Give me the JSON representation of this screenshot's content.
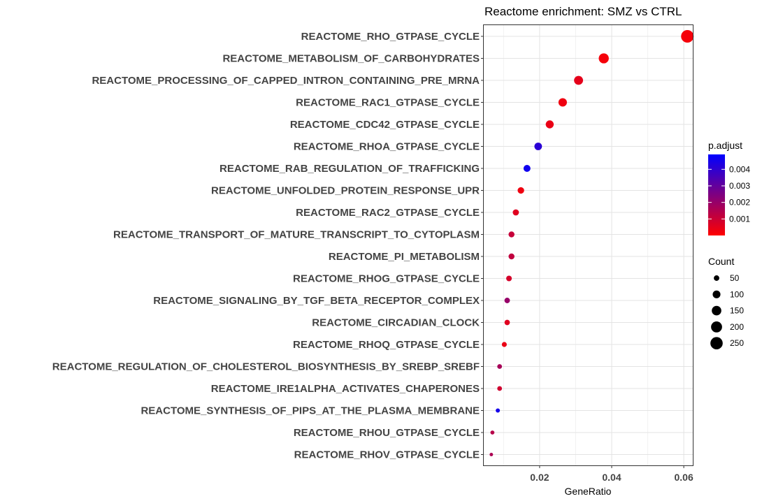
{
  "chart_data": {
    "type": "scatter",
    "title": "Reactome enrichment: SMZ vs CTRL",
    "xlabel": "GeneRatio",
    "ylabel": "",
    "xlim": [
      0.0045,
      0.0625
    ],
    "xticks": [
      0.02,
      0.04,
      0.06
    ],
    "xtick_labels": [
      "0.02",
      "0.04",
      "0.06"
    ],
    "grid": true,
    "colors": {
      "low": "#FF0000",
      "high": "#0000FF"
    },
    "color_legend": {
      "title": "p.adjust",
      "position": "right",
      "range": [
        0.0,
        0.0049
      ],
      "ticks": [
        0.001,
        0.002,
        0.003,
        0.004
      ],
      "tick_labels": [
        "0.001",
        "0.002",
        "0.003",
        "0.004"
      ]
    },
    "size_legend": {
      "title": "Count",
      "position": "right",
      "values": [
        50,
        100,
        150,
        200,
        250
      ],
      "labels": [
        "50",
        "100",
        "150",
        "200",
        "250"
      ]
    },
    "categories": [
      "REACTOME_RHO_GTPASE_CYCLE",
      "REACTOME_METABOLISM_OF_CARBOHYDRATES",
      "REACTOME_PROCESSING_OF_CAPPED_INTRON_CONTAINING_PRE_MRNA",
      "REACTOME_RAC1_GTPASE_CYCLE",
      "REACTOME_CDC42_GTPASE_CYCLE",
      "REACTOME_RHOA_GTPASE_CYCLE",
      "REACTOME_RAB_REGULATION_OF_TRAFFICKING",
      "REACTOME_UNFOLDED_PROTEIN_RESPONSE_UPR",
      "REACTOME_RAC2_GTPASE_CYCLE",
      "REACTOME_TRANSPORT_OF_MATURE_TRANSCRIPT_TO_CYTOPLASM",
      "REACTOME_PI_METABOLISM",
      "REACTOME_RHOG_GTPASE_CYCLE",
      "REACTOME_SIGNALING_BY_TGF_BETA_RECEPTOR_COMPLEX",
      "REACTOME_CIRCADIAN_CLOCK",
      "REACTOME_RHOQ_GTPASE_CYCLE",
      "REACTOME_REGULATION_OF_CHOLESTEROL_BIOSYNTHESIS_BY_SREBP_SREBF",
      "REACTOME_IRE1ALPHA_ACTIVATES_CHAPERONES",
      "REACTOME_SYNTHESIS_OF_PIPS_AT_THE_PLASMA_MEMBRANE",
      "REACTOME_RHOU_GTPASE_CYCLE",
      "REACTOME_RHOV_GTPASE_CYCLE"
    ],
    "gene_ratio": [
      0.061,
      0.0378,
      0.0308,
      0.0264,
      0.0228,
      0.0196,
      0.0165,
      0.0148,
      0.0134,
      0.0122,
      0.0122,
      0.0115,
      0.011,
      0.011,
      0.0102,
      0.0089,
      0.0089,
      0.0084,
      0.0069,
      0.0066
    ],
    "count": [
      262,
      166,
      133,
      118,
      105,
      95,
      80,
      70,
      63,
      58,
      58,
      52,
      50,
      48,
      41,
      37,
      37,
      29,
      27,
      20
    ],
    "p_adjust": [
      0.0002,
      0.0002,
      0.0005,
      0.0003,
      0.0004,
      0.0041,
      0.0046,
      0.0003,
      0.0006,
      0.0011,
      0.0012,
      0.0008,
      0.002,
      0.0006,
      0.0004,
      0.0017,
      0.0009,
      0.0045,
      0.0014,
      0.0016
    ]
  }
}
